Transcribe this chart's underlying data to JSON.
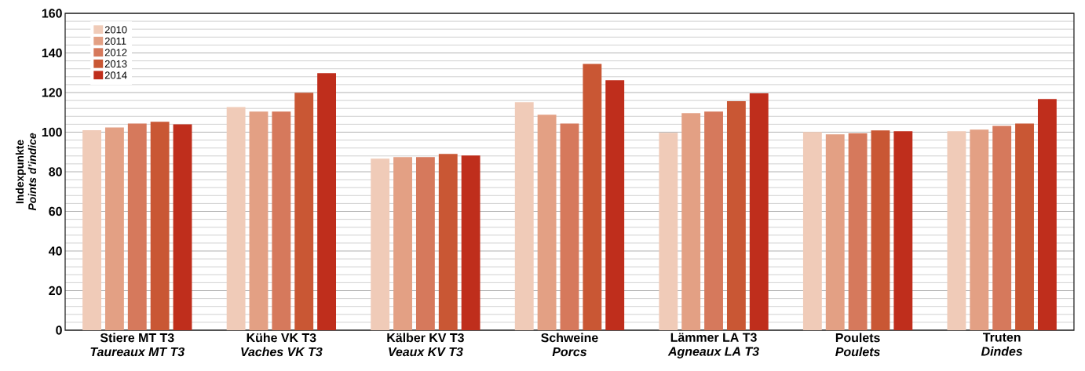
{
  "chart_data": {
    "type": "bar",
    "ylabel": "Indexpunkte\n*Points d’indice*",
    "categories": [
      "Stiere MT T3\n*Taureaux MT T3*",
      "Kühe VK T3\n*Vaches VK T3*",
      "Kälber KV T3\n*Veaux  KV T3*",
      "Schweine\n*Porcs*",
      "Lämmer LA T3\n*Agneaux LA T3*",
      "Poulets\n*Poulets*",
      "Truten\n*Dindes*"
    ],
    "series": [
      {
        "name": "2010",
        "color": "#f0cbb8",
        "values": [
          101,
          112.7,
          86.6,
          115.1,
          99.7,
          100.1,
          100.5
        ]
      },
      {
        "name": "2011",
        "color": "#e3a084",
        "values": [
          102.4,
          110.4,
          87.4,
          108.8,
          109.6,
          98.9,
          101.3
        ]
      },
      {
        "name": "2012",
        "color": "#d6795c",
        "values": [
          104.4,
          110.4,
          87.4,
          104.4,
          110.4,
          99.4,
          103.2
        ]
      },
      {
        "name": "2013",
        "color": "#c95734",
        "values": [
          105.2,
          119.9,
          89,
          134.5,
          115.6,
          100.9,
          104.4
        ]
      },
      {
        "name": "2014",
        "color": "#bf2e1c",
        "values": [
          104,
          129.8,
          88.2,
          126.2,
          119.6,
          100.5,
          116.7
        ]
      }
    ],
    "ylim": [
      0,
      160
    ],
    "yticks": [
      0,
      20,
      40,
      60,
      80,
      100,
      120,
      140,
      160
    ],
    "grid": "y",
    "legend": "top left"
  }
}
